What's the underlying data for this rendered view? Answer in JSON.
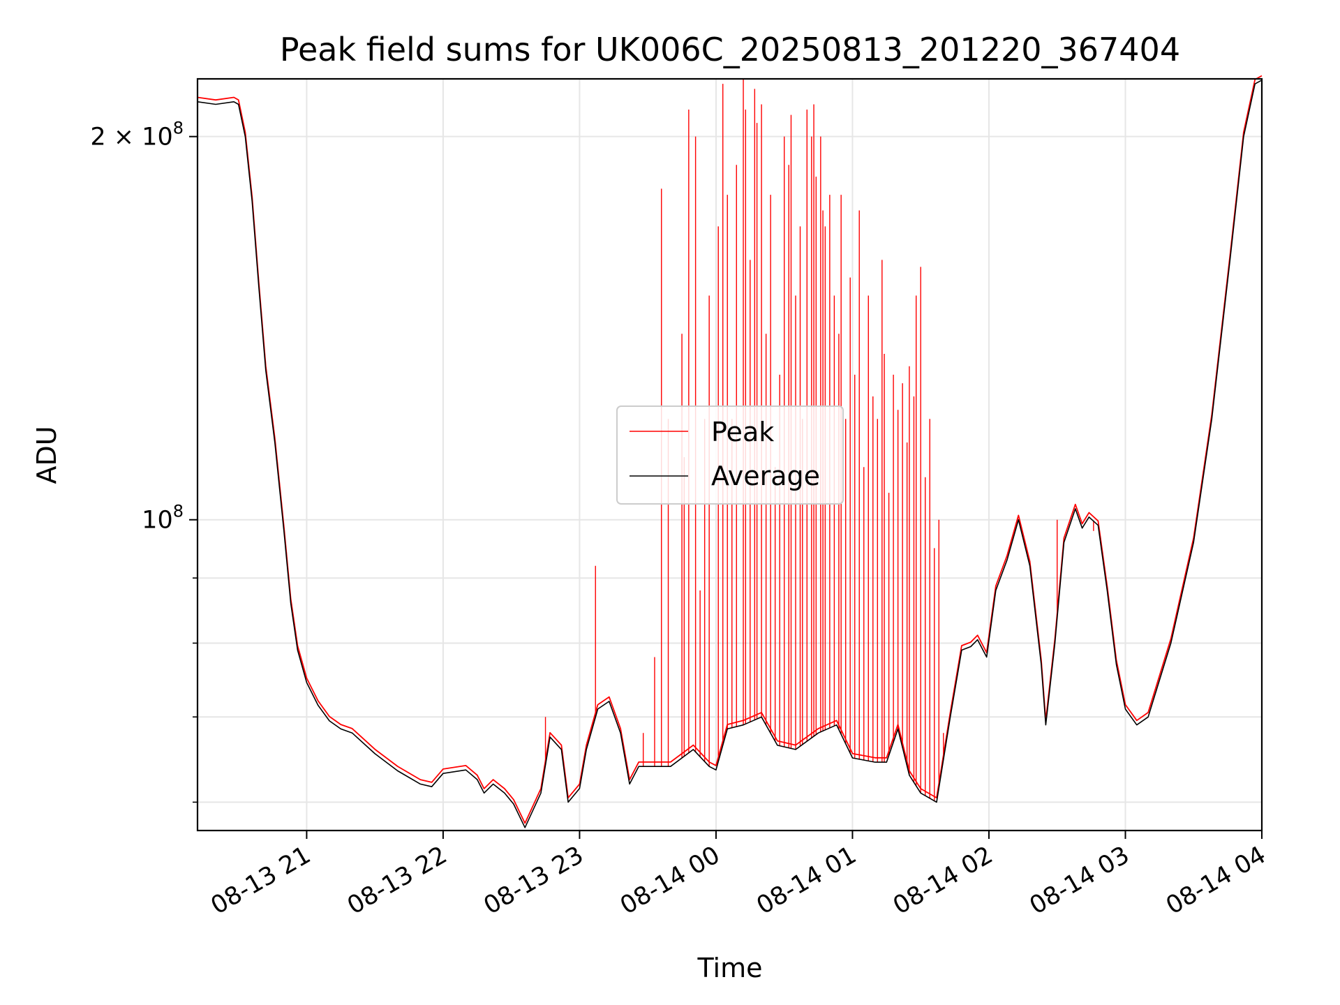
{
  "chart_data": {
    "type": "line",
    "title": "Peak field sums for UK006C_20250813_201220_367404",
    "xlabel": "Time",
    "ylabel": "ADU",
    "y_scale": "log",
    "ylim": [
      57000000,
      222000000
    ],
    "xlim": [
      "2025-08-13T20:12",
      "2025-08-14T04:00"
    ],
    "grid": true,
    "legend_position": "center",
    "x_ticks": [
      {
        "t": "2025-08-13T21:00",
        "label": "08-13 21"
      },
      {
        "t": "2025-08-13T22:00",
        "label": "08-13 22"
      },
      {
        "t": "2025-08-13T23:00",
        "label": "08-13 23"
      },
      {
        "t": "2025-08-14T00:00",
        "label": "08-14 00"
      },
      {
        "t": "2025-08-14T01:00",
        "label": "08-14 01"
      },
      {
        "t": "2025-08-14T02:00",
        "label": "08-14 02"
      },
      {
        "t": "2025-08-14T03:00",
        "label": "08-14 03"
      },
      {
        "t": "2025-08-14T04:00",
        "label": "08-14 04"
      }
    ],
    "y_ticks_major": [
      {
        "value": 100000000,
        "base": "10",
        "exp": "8",
        "coef": ""
      },
      {
        "value": 200000000,
        "base": "10",
        "exp": "8",
        "coef": "2 × "
      }
    ],
    "y_ticks_minor": [
      60000000,
      70000000,
      80000000,
      90000000
    ],
    "series": [
      {
        "name": "Average",
        "color": "#000000",
        "points": [
          [
            "2025-08-13T20:12",
            213000000
          ],
          [
            "2025-08-13T20:20",
            212000000
          ],
          [
            "2025-08-13T20:28",
            213000000
          ],
          [
            "2025-08-13T20:30",
            212000000
          ],
          [
            "2025-08-13T20:33",
            200000000
          ],
          [
            "2025-08-13T20:36",
            178000000
          ],
          [
            "2025-08-13T20:39",
            152000000
          ],
          [
            "2025-08-13T20:42",
            131000000
          ],
          [
            "2025-08-13T20:46",
            115000000
          ],
          [
            "2025-08-13T20:50",
            98000000
          ],
          [
            "2025-08-13T20:53",
            86000000
          ],
          [
            "2025-08-13T20:56",
            79000000
          ],
          [
            "2025-08-13T21:00",
            74500000
          ],
          [
            "2025-08-13T21:05",
            71500000
          ],
          [
            "2025-08-13T21:10",
            69500000
          ],
          [
            "2025-08-13T21:15",
            68500000
          ],
          [
            "2025-08-13T21:20",
            68000000
          ],
          [
            "2025-08-13T21:30",
            65500000
          ],
          [
            "2025-08-13T21:40",
            63500000
          ],
          [
            "2025-08-13T21:50",
            62000000
          ],
          [
            "2025-08-13T21:55",
            61700000
          ],
          [
            "2025-08-13T22:00",
            63200000
          ],
          [
            "2025-08-13T22:10",
            63600000
          ],
          [
            "2025-08-13T22:15",
            62500000
          ],
          [
            "2025-08-13T22:18",
            61000000
          ],
          [
            "2025-08-13T22:22",
            62000000
          ],
          [
            "2025-08-13T22:27",
            61000000
          ],
          [
            "2025-08-13T22:31",
            59800000
          ],
          [
            "2025-08-13T22:36",
            57300000
          ],
          [
            "2025-08-13T22:43",
            61000000
          ],
          [
            "2025-08-13T22:47",
            67500000
          ],
          [
            "2025-08-13T22:52",
            66000000
          ],
          [
            "2025-08-13T22:55",
            60000000
          ],
          [
            "2025-08-13T23:00",
            61500000
          ],
          [
            "2025-08-13T23:03",
            66000000
          ],
          [
            "2025-08-13T23:08",
            71000000
          ],
          [
            "2025-08-13T23:13",
            72000000
          ],
          [
            "2025-08-13T23:18",
            68000000
          ],
          [
            "2025-08-13T23:22",
            62000000
          ],
          [
            "2025-08-13T23:26",
            64000000
          ],
          [
            "2025-08-13T23:40",
            64000000
          ],
          [
            "2025-08-13T23:50",
            66000000
          ],
          [
            "2025-08-13T23:57",
            64000000
          ],
          [
            "2025-08-14T00:00",
            63600000
          ],
          [
            "2025-08-14T00:05",
            68500000
          ],
          [
            "2025-08-14T00:12",
            69000000
          ],
          [
            "2025-08-14T00:20",
            70000000
          ],
          [
            "2025-08-14T00:27",
            66500000
          ],
          [
            "2025-08-14T00:35",
            66000000
          ],
          [
            "2025-08-14T00:45",
            68000000
          ],
          [
            "2025-08-14T00:53",
            69000000
          ],
          [
            "2025-08-14T01:00",
            65000000
          ],
          [
            "2025-08-14T01:10",
            64500000
          ],
          [
            "2025-08-14T01:15",
            64500000
          ],
          [
            "2025-08-14T01:20",
            68500000
          ],
          [
            "2025-08-14T01:25",
            63000000
          ],
          [
            "2025-08-14T01:30",
            61000000
          ],
          [
            "2025-08-14T01:37",
            60000000
          ],
          [
            "2025-08-14T01:43",
            70000000
          ],
          [
            "2025-08-14T01:48",
            79000000
          ],
          [
            "2025-08-14T01:52",
            79500000
          ],
          [
            "2025-08-14T01:55",
            80500000
          ],
          [
            "2025-08-14T01:59",
            78000000
          ],
          [
            "2025-08-14T02:03",
            88000000
          ],
          [
            "2025-08-14T02:08",
            93000000
          ],
          [
            "2025-08-14T02:13",
            100000000
          ],
          [
            "2025-08-14T02:18",
            92000000
          ],
          [
            "2025-08-14T02:23",
            77000000
          ],
          [
            "2025-08-14T02:25",
            69000000
          ],
          [
            "2025-08-14T02:29",
            80000000
          ],
          [
            "2025-08-14T02:33",
            96000000
          ],
          [
            "2025-08-14T02:38",
            102000000
          ],
          [
            "2025-08-14T02:41",
            98500000
          ],
          [
            "2025-08-14T02:44",
            100500000
          ],
          [
            "2025-08-14T02:48",
            99000000
          ],
          [
            "2025-08-14T02:52",
            88000000
          ],
          [
            "2025-08-14T02:56",
            77000000
          ],
          [
            "2025-08-14T03:00",
            71000000
          ],
          [
            "2025-08-14T03:05",
            69000000
          ],
          [
            "2025-08-14T03:10",
            70000000
          ],
          [
            "2025-08-14T03:20",
            80000000
          ],
          [
            "2025-08-14T03:30",
            96000000
          ],
          [
            "2025-08-14T03:38",
            120000000
          ],
          [
            "2025-08-14T03:46",
            160000000
          ],
          [
            "2025-08-14T03:52",
            200000000
          ],
          [
            "2025-08-14T03:57",
            220000000
          ],
          [
            "2025-08-14T04:00",
            221500000
          ]
        ]
      },
      {
        "name": "Peak",
        "color": "#ff0000",
        "baseline_offset": 1.008,
        "spikes": [
          [
            "2025-08-13T22:45",
            70000000
          ],
          [
            "2025-08-13T23:07",
            92000000
          ],
          [
            "2025-08-13T23:28",
            68000000
          ],
          [
            "2025-08-13T23:33",
            78000000
          ],
          [
            "2025-08-13T23:36",
            182000000
          ],
          [
            "2025-08-13T23:39",
            120000000
          ],
          [
            "2025-08-13T23:45",
            140000000
          ],
          [
            "2025-08-13T23:46",
            112000000
          ],
          [
            "2025-08-13T23:48",
            210000000
          ],
          [
            "2025-08-13T23:51",
            200000000
          ],
          [
            "2025-08-13T23:53",
            88000000
          ],
          [
            "2025-08-13T23:55",
            120000000
          ],
          [
            "2025-08-13T23:57",
            150000000
          ],
          [
            "2025-08-14T00:01",
            170000000
          ],
          [
            "2025-08-14T00:03",
            220000000
          ],
          [
            "2025-08-14T00:05",
            180000000
          ],
          [
            "2025-08-14T00:07",
            120000000
          ],
          [
            "2025-08-14T00:09",
            190000000
          ],
          [
            "2025-08-14T00:12",
            222000000
          ],
          [
            "2025-08-14T00:13",
            210000000
          ],
          [
            "2025-08-14T00:15",
            160000000
          ],
          [
            "2025-08-14T00:17",
            218000000
          ],
          [
            "2025-08-14T00:18",
            205000000
          ],
          [
            "2025-08-14T00:20",
            212000000
          ],
          [
            "2025-08-14T00:22",
            140000000
          ],
          [
            "2025-08-14T00:24",
            180000000
          ],
          [
            "2025-08-14T00:26",
            110000000
          ],
          [
            "2025-08-14T00:28",
            130000000
          ],
          [
            "2025-08-14T00:30",
            200000000
          ],
          [
            "2025-08-14T00:32",
            190000000
          ],
          [
            "2025-08-14T00:33",
            208000000
          ],
          [
            "2025-08-14T00:35",
            150000000
          ],
          [
            "2025-08-14T00:37",
            170000000
          ],
          [
            "2025-08-14T00:38",
            120000000
          ],
          [
            "2025-08-14T00:40",
            210000000
          ],
          [
            "2025-08-14T00:42",
            200000000
          ],
          [
            "2025-08-14T00:43",
            212000000
          ],
          [
            "2025-08-14T00:44",
            186000000
          ],
          [
            "2025-08-14T00:46",
            200000000
          ],
          [
            "2025-08-14T00:47",
            175000000
          ],
          [
            "2025-08-14T00:48",
            170000000
          ],
          [
            "2025-08-14T00:50",
            180000000
          ],
          [
            "2025-08-14T00:52",
            150000000
          ],
          [
            "2025-08-14T00:54",
            140000000
          ],
          [
            "2025-08-14T00:55",
            180000000
          ],
          [
            "2025-08-14T00:57",
            120000000
          ],
          [
            "2025-08-14T00:59",
            155000000
          ],
          [
            "2025-08-14T01:01",
            130000000
          ],
          [
            "2025-08-14T01:03",
            175000000
          ],
          [
            "2025-08-14T01:05",
            110000000
          ],
          [
            "2025-08-14T01:07",
            150000000
          ],
          [
            "2025-08-14T01:09",
            125000000
          ],
          [
            "2025-08-14T01:11",
            120000000
          ],
          [
            "2025-08-14T01:13",
            160000000
          ],
          [
            "2025-08-14T01:14",
            135000000
          ],
          [
            "2025-08-14T01:16",
            105000000
          ],
          [
            "2025-08-14T01:18",
            130000000
          ],
          [
            "2025-08-14T01:20",
            122000000
          ],
          [
            "2025-08-14T01:22",
            128000000
          ],
          [
            "2025-08-14T01:24",
            115000000
          ],
          [
            "2025-08-14T01:25",
            132000000
          ],
          [
            "2025-08-14T01:27",
            125000000
          ],
          [
            "2025-08-14T01:28",
            150000000
          ],
          [
            "2025-08-14T01:30",
            158000000
          ],
          [
            "2025-08-14T01:32",
            108000000
          ],
          [
            "2025-08-14T01:34",
            120000000
          ],
          [
            "2025-08-14T01:36",
            95000000
          ],
          [
            "2025-08-14T01:38",
            100000000
          ],
          [
            "2025-08-14T01:40",
            68000000
          ],
          [
            "2025-08-14T02:30",
            100000000
          ],
          [
            "2025-08-14T02:46",
            98000000
          ]
        ]
      }
    ]
  }
}
